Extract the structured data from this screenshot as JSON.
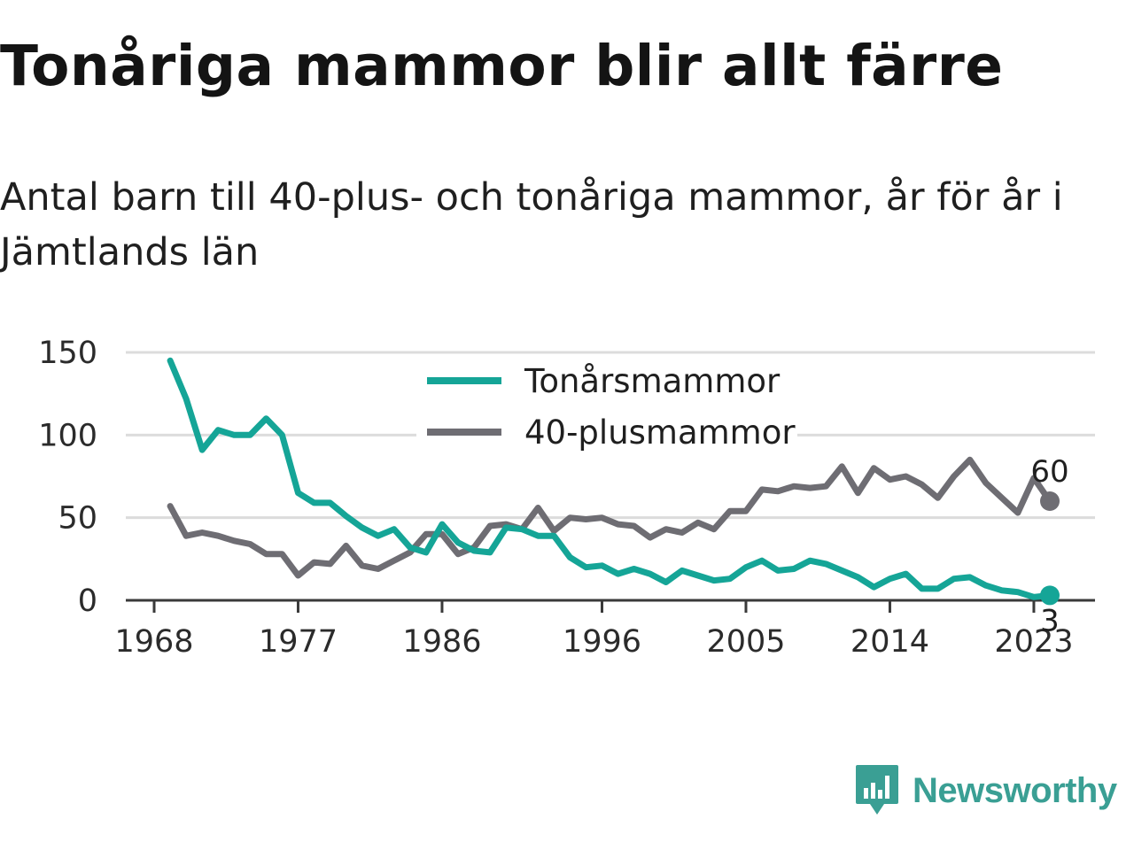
{
  "title": "Tonåriga mammor blir allt färre",
  "subtitle": "Antal barn till 40-plus- och tonåriga mammor, år för år i Jämtlands län",
  "brand": {
    "name": "Newsworthy",
    "icon": "newsworthy-chart-bubble-icon",
    "color": "#3a9f94"
  },
  "chart_data": {
    "type": "line",
    "x": [
      1969,
      1970,
      1971,
      1972,
      1973,
      1974,
      1975,
      1976,
      1977,
      1978,
      1979,
      1980,
      1981,
      1982,
      1983,
      1984,
      1985,
      1986,
      1987,
      1988,
      1989,
      1990,
      1991,
      1992,
      1993,
      1994,
      1995,
      1996,
      1997,
      1998,
      1999,
      2000,
      2001,
      2002,
      2003,
      2004,
      2005,
      2006,
      2007,
      2008,
      2009,
      2010,
      2011,
      2012,
      2013,
      2014,
      2015,
      2016,
      2017,
      2018,
      2019,
      2020,
      2021,
      2022,
      2023,
      2024
    ],
    "x_ticks": [
      1968,
      1977,
      1986,
      1996,
      2005,
      2014,
      2023
    ],
    "y_ticks": [
      0,
      50,
      100,
      150
    ],
    "xlim": [
      1968,
      2024.5
    ],
    "ylim": [
      0,
      150
    ],
    "grid": true,
    "legend": "top-center",
    "series": [
      {
        "name": "Tonårsmammor",
        "color": "#15a597",
        "values": [
          145,
          122,
          91,
          103,
          100,
          100,
          110,
          100,
          65,
          59,
          59,
          51,
          44,
          39,
          43,
          32,
          29,
          46,
          35,
          30,
          29,
          44,
          43,
          39,
          39,
          26,
          20,
          21,
          16,
          19,
          16,
          11,
          18,
          15,
          12,
          13,
          20,
          24,
          18,
          19,
          24,
          22,
          18,
          14,
          8,
          13,
          16,
          7,
          7,
          13,
          14,
          9,
          6,
          5,
          2,
          3
        ],
        "end_label": "3"
      },
      {
        "name": "40-plusmammor",
        "color": "#6e6d73",
        "values": [
          57,
          39,
          41,
          39,
          36,
          34,
          28,
          28,
          15,
          23,
          22,
          33,
          21,
          19,
          24,
          29,
          40,
          40,
          28,
          32,
          45,
          46,
          43,
          56,
          42,
          50,
          49,
          50,
          46,
          45,
          38,
          43,
          41,
          47,
          43,
          54,
          54,
          67,
          66,
          69,
          68,
          69,
          81,
          65,
          80,
          73,
          75,
          70,
          62,
          75,
          85,
          71,
          62,
          53,
          74,
          60
        ],
        "end_label": "60"
      }
    ]
  }
}
